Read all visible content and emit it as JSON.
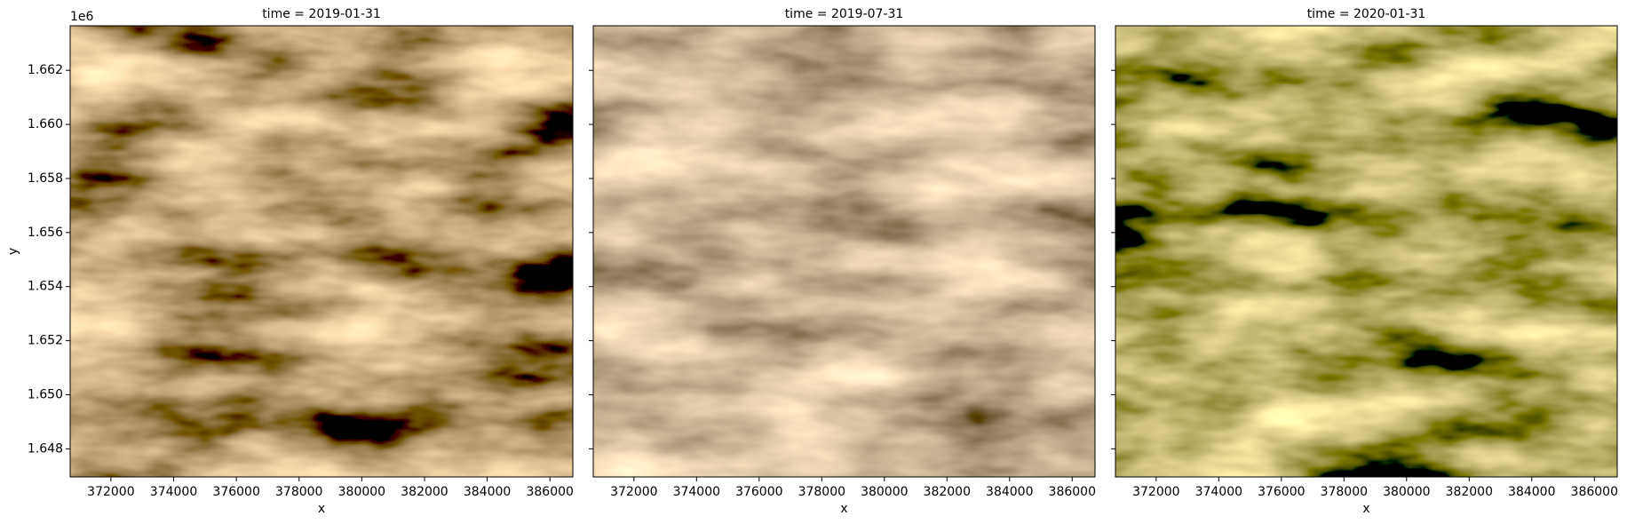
{
  "chart_data": [
    {
      "type": "image",
      "title": "time = 2019-01-31",
      "xlabel": "x",
      "ylabel": "y",
      "y_offset_label": "1e6",
      "xlim": [
        370700,
        386730
      ],
      "xticks": [
        372000,
        374000,
        376000,
        378000,
        380000,
        382000,
        384000,
        386000
      ],
      "ylim": [
        1646960,
        1663650
      ],
      "yticks": [
        {
          "value": 1648000,
          "label": "1.648"
        },
        {
          "value": 1650000,
          "label": "1.650"
        },
        {
          "value": 1652000,
          "label": "1.652"
        },
        {
          "value": 1654000,
          "label": "1.654"
        },
        {
          "value": 1656000,
          "label": "1.656"
        },
        {
          "value": 1658000,
          "label": "1.658"
        },
        {
          "value": 1660000,
          "label": "1.660"
        },
        {
          "value": 1662000,
          "label": "1.662"
        }
      ]
    },
    {
      "type": "image",
      "title": "time = 2019-07-31",
      "xlabel": "x",
      "sharey": true,
      "xlim": [
        370700,
        386730
      ],
      "xticks": [
        372000,
        374000,
        376000,
        378000,
        380000,
        382000,
        384000,
        386000
      ],
      "ylim": [
        1646960,
        1663650
      ]
    },
    {
      "type": "image",
      "title": "time = 2020-01-31",
      "xlabel": "x",
      "sharey": true,
      "xlim": [
        370700,
        386730
      ],
      "xticks": [
        372000,
        374000,
        376000,
        378000,
        380000,
        382000,
        384000,
        386000
      ],
      "ylim": [
        1646960,
        1663650
      ]
    }
  ]
}
